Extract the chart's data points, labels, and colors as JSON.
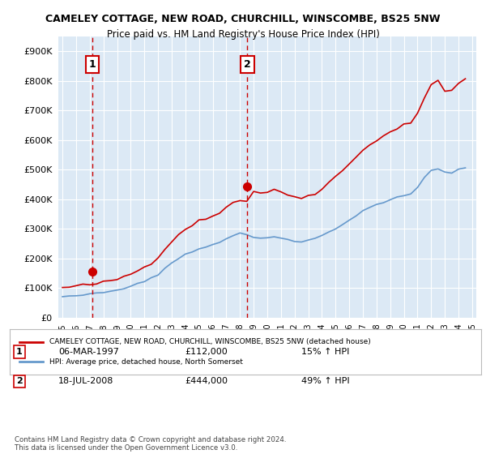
{
  "title": "CAMELEY COTTAGE, NEW ROAD, CHURCHILL, WINSCOMBE, BS25 5NW",
  "subtitle": "Price paid vs. HM Land Registry's House Price Index (HPI)",
  "bg_color": "#dce9f5",
  "plot_bg_color": "#dce9f5",
  "red_line_label": "CAMELEY COTTAGE, NEW ROAD, CHURCHILL, WINSCOMBE, BS25 5NW (detached house)",
  "blue_line_label": "HPI: Average price, detached house, North Somerset",
  "purchase1_date": "06-MAR-1997",
  "purchase1_price": 112000,
  "purchase1_hpi": "15% ↑ HPI",
  "purchase2_date": "18-JUL-2008",
  "purchase2_price": 444000,
  "purchase2_hpi": "49% ↑ HPI",
  "footer": "Contains HM Land Registry data © Crown copyright and database right 2024.\nThis data is licensed under the Open Government Licence v3.0.",
  "ylim": [
    0,
    950000
  ],
  "yticks": [
    0,
    100000,
    200000,
    300000,
    400000,
    500000,
    600000,
    700000,
    800000,
    900000
  ],
  "xtick_years": [
    1995,
    1996,
    1997,
    1998,
    1999,
    2000,
    2001,
    2002,
    2003,
    2004,
    2005,
    2006,
    2007,
    2008,
    2009,
    2010,
    2011,
    2012,
    2013,
    2014,
    2015,
    2016,
    2017,
    2018,
    2019,
    2020,
    2021,
    2022,
    2023,
    2024,
    2025
  ],
  "purchase1_x": 1997.18,
  "purchase2_x": 2008.54,
  "red_color": "#cc0000",
  "blue_color": "#6699cc",
  "dashed_color": "#cc0000",
  "marker_color": "#cc0000"
}
